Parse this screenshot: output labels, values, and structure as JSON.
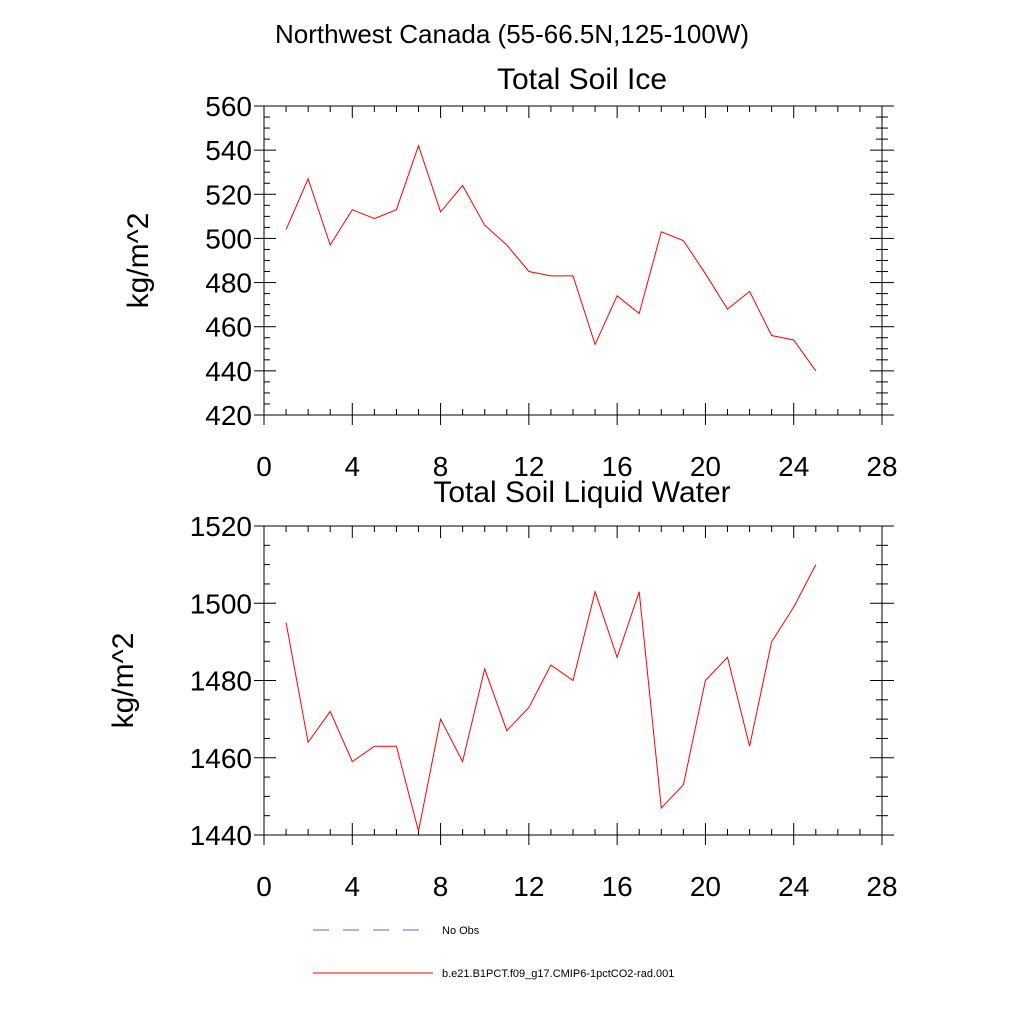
{
  "figure_title": "Northwest Canada (55-66.5N,125-100W)",
  "chart_data": [
    {
      "type": "line",
      "title": "Total Soil Ice",
      "xlabel": "",
      "ylabel": "kg/m^2",
      "xlim": [
        0,
        28
      ],
      "ylim": [
        420,
        560
      ],
      "xticks": [
        0,
        4,
        8,
        12,
        16,
        20,
        24,
        28
      ],
      "yticks": [
        420,
        440,
        460,
        480,
        500,
        520,
        540,
        560
      ],
      "grid": false,
      "series": [
        {
          "name": "b.e21.B1PCT.f09_g17.CMIP6-1pctCO2-rad.001",
          "color": "#ff0000",
          "x": [
            1,
            2,
            3,
            4,
            5,
            6,
            7,
            8,
            9,
            10,
            11,
            12,
            13,
            14,
            15,
            16,
            17,
            18,
            19,
            20,
            21,
            22,
            23,
            24,
            25
          ],
          "y": [
            504,
            527,
            497,
            513,
            509,
            513,
            542,
            512,
            524,
            506,
            497,
            485,
            483,
            483,
            452,
            474,
            466,
            503,
            499,
            484,
            468,
            476,
            456,
            454,
            440
          ]
        }
      ]
    },
    {
      "type": "line",
      "title": "Total Soil Liquid Water",
      "xlabel": "",
      "ylabel": "kg/m^2",
      "xlim": [
        0,
        28
      ],
      "ylim": [
        1440,
        1520
      ],
      "xticks": [
        0,
        4,
        8,
        12,
        16,
        20,
        24,
        28
      ],
      "yticks": [
        1440,
        1460,
        1480,
        1500,
        1520
      ],
      "grid": false,
      "series": [
        {
          "name": "b.e21.B1PCT.f09_g17.CMIP6-1pctCO2-rad.001",
          "color": "#ff0000",
          "x": [
            1,
            2,
            3,
            4,
            5,
            6,
            7,
            8,
            9,
            10,
            11,
            12,
            13,
            14,
            15,
            16,
            17,
            18,
            19,
            20,
            21,
            22,
            23,
            24,
            25
          ],
          "y": [
            1495,
            1464,
            1472,
            1459,
            1463,
            1463,
            1441,
            1470,
            1459,
            1483,
            1467,
            1473,
            1484,
            1480,
            1503,
            1486,
            1503,
            1447,
            1453,
            1480,
            1486,
            1463,
            1490,
            1499,
            1510
          ]
        }
      ]
    }
  ],
  "legend": {
    "placement": "bottom-center",
    "items": [
      {
        "label": "No Obs",
        "color": "#6666aa",
        "style": "dashed"
      },
      {
        "label": "b.e21.B1PCT.f09_g17.CMIP6-1pctCO2-rad.001",
        "color": "#ff0000",
        "style": "solid"
      }
    ]
  }
}
